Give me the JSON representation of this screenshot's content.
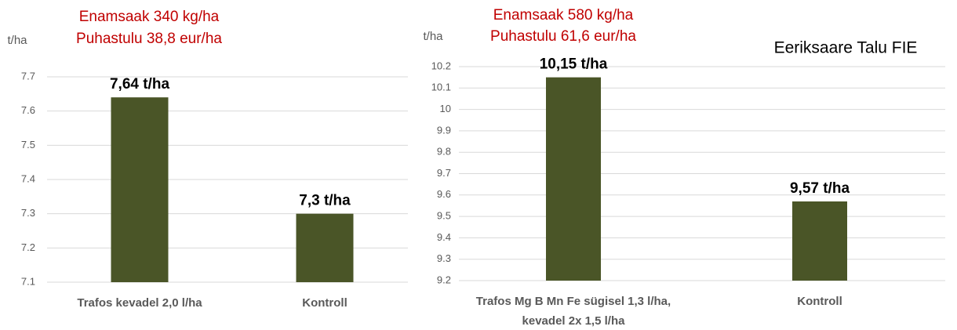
{
  "chart_data": [
    {
      "type": "bar",
      "annotations": [
        "Enamsaak 340 kg/ha",
        "Puhastulu 38,8 eur/ha"
      ],
      "y_label": "t/ha",
      "categories": [
        [
          "Trafos kevadel 2,0 l/ha"
        ],
        [
          "Kontroll"
        ]
      ],
      "values": [
        7.64,
        7.3
      ],
      "value_labels": [
        "7,64 t/ha",
        "7,3 t/ha"
      ],
      "color": "#4a5527",
      "ylim": [
        7.1,
        7.7
      ],
      "yticks": [
        7.1,
        7.2,
        7.3,
        7.4,
        7.5,
        7.6,
        7.7
      ],
      "grid": true
    },
    {
      "type": "bar",
      "annotations": [
        "Enamsaak 580 kg/ha",
        "Puhastulu 61,6 eur/ha"
      ],
      "subtitle": "Eeriksaare Talu FIE",
      "y_label": "t/ha",
      "categories": [
        [
          "Trafos Mg B Mn Fe sügisel 1,3 l/ha,",
          "kevadel 2x 1,5 l/ha"
        ],
        [
          "Kontroll"
        ]
      ],
      "values": [
        10.15,
        9.57
      ],
      "value_labels": [
        "10,15 t/ha",
        "9,57 t/ha"
      ],
      "color": "#4a5527",
      "ylim": [
        9.2,
        10.2
      ],
      "yticks": [
        9.2,
        9.3,
        9.4,
        9.5,
        9.6,
        9.7,
        9.8,
        9.9,
        10,
        10.1,
        10.2
      ],
      "grid": true
    }
  ]
}
